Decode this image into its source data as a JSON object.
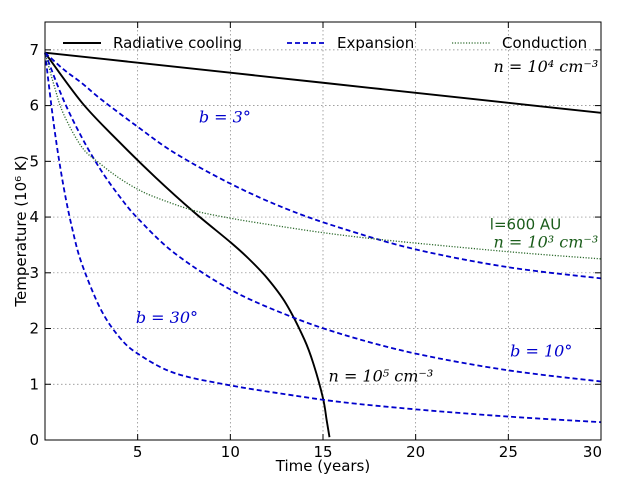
{
  "chart_data": {
    "type": "line",
    "xlabel": "Time (years)",
    "ylabel": "Temperature (10⁶ K)",
    "xlim": [
      0,
      30
    ],
    "ylim": [
      0,
      7.5
    ],
    "x_ticks": [
      5,
      10,
      15,
      20,
      25,
      30
    ],
    "x_tick_labels": [
      "5",
      "10",
      "15",
      "20",
      "25",
      "30"
    ],
    "y_ticks": [
      0,
      1,
      2,
      3,
      4,
      5,
      6,
      7
    ],
    "y_tick_labels": [
      "0",
      "1",
      "2",
      "3",
      "4",
      "5",
      "6",
      "7"
    ],
    "grid": true,
    "legend_position": "top",
    "legend": [
      {
        "label": "Radiative cooling",
        "color": "#000000",
        "style": "solid"
      },
      {
        "label": "Expansion",
        "color": "#0000cc",
        "style": "dashed"
      },
      {
        "label": "Conduction",
        "color": "#2e6b2e",
        "style": "dotted"
      }
    ],
    "series": [
      {
        "kind": "radiative",
        "color": "#000000",
        "style": "solid",
        "x": [
          0,
          5,
          10,
          15,
          20,
          25,
          30
        ],
        "y": [
          6.95,
          6.77,
          6.59,
          6.41,
          6.23,
          6.05,
          5.87
        ]
      },
      {
        "kind": "radiative",
        "color": "#000000",
        "style": "solid",
        "x": [
          0,
          2,
          4,
          6,
          8,
          10,
          11,
          12,
          13,
          14,
          14.5,
          15,
          15.2,
          15.35
        ],
        "y": [
          6.95,
          6.05,
          5.35,
          4.7,
          4.1,
          3.55,
          3.25,
          2.9,
          2.45,
          1.8,
          1.35,
          0.75,
          0.35,
          0.05
        ]
      },
      {
        "kind": "expansion",
        "color": "#0000cc",
        "style": "dashed",
        "x": [
          0,
          1,
          2,
          3,
          5,
          7,
          10,
          13,
          16,
          20,
          25,
          30
        ],
        "y": [
          6.95,
          6.65,
          6.4,
          6.12,
          5.62,
          5.15,
          4.6,
          4.15,
          3.8,
          3.42,
          3.1,
          2.9
        ]
      },
      {
        "kind": "expansion",
        "color": "#0000cc",
        "style": "dashed",
        "x": [
          0,
          1,
          2,
          3,
          4,
          5,
          7,
          10,
          13,
          16,
          20,
          25,
          30
        ],
        "y": [
          6.95,
          6.1,
          5.42,
          4.85,
          4.38,
          3.98,
          3.35,
          2.7,
          2.25,
          1.9,
          1.55,
          1.25,
          1.05
        ]
      },
      {
        "kind": "expansion",
        "color": "#0000cc",
        "style": "dashed",
        "x": [
          0,
          0.5,
          1,
          1.5,
          2,
          3,
          4,
          5,
          7,
          10,
          13,
          16,
          20,
          25,
          30
        ],
        "y": [
          6.95,
          5.6,
          4.55,
          3.75,
          3.15,
          2.35,
          1.85,
          1.55,
          1.2,
          0.98,
          0.82,
          0.68,
          0.55,
          0.42,
          0.32
        ]
      },
      {
        "kind": "conduction",
        "color": "#2e6b2e",
        "style": "dotted",
        "x": [
          0,
          0.5,
          1,
          2,
          3,
          4,
          5,
          6,
          8,
          10,
          12,
          15,
          18,
          22,
          26,
          30
        ],
        "y": [
          6.95,
          6.35,
          5.85,
          5.25,
          4.95,
          4.7,
          4.5,
          4.35,
          4.12,
          3.98,
          3.87,
          3.72,
          3.6,
          3.47,
          3.35,
          3.25
        ]
      }
    ],
    "annotations": [
      {
        "text": "n = 10⁴ cm⁻³",
        "x": 24.2,
        "y": 6.6,
        "color": "#000000"
      },
      {
        "text": "b = 3°",
        "x": 8.3,
        "y": 5.7,
        "color": "#0000cc"
      },
      {
        "text": "l=600 AU",
        "x": 24,
        "y": 3.78,
        "color": "#1a5c1a"
      },
      {
        "text": "n = 10³ cm⁻³",
        "x": 24.2,
        "y": 3.45,
        "color": "#1a5c1a"
      },
      {
        "text": "b = 30°",
        "x": 4.9,
        "y": 2.1,
        "color": "#0000cc"
      },
      {
        "text": "b = 10°",
        "x": 25.1,
        "y": 1.5,
        "color": "#0000cc"
      },
      {
        "text": "n = 10⁵ cm⁻³",
        "x": 15.3,
        "y": 1.05,
        "color": "#000000"
      }
    ]
  }
}
